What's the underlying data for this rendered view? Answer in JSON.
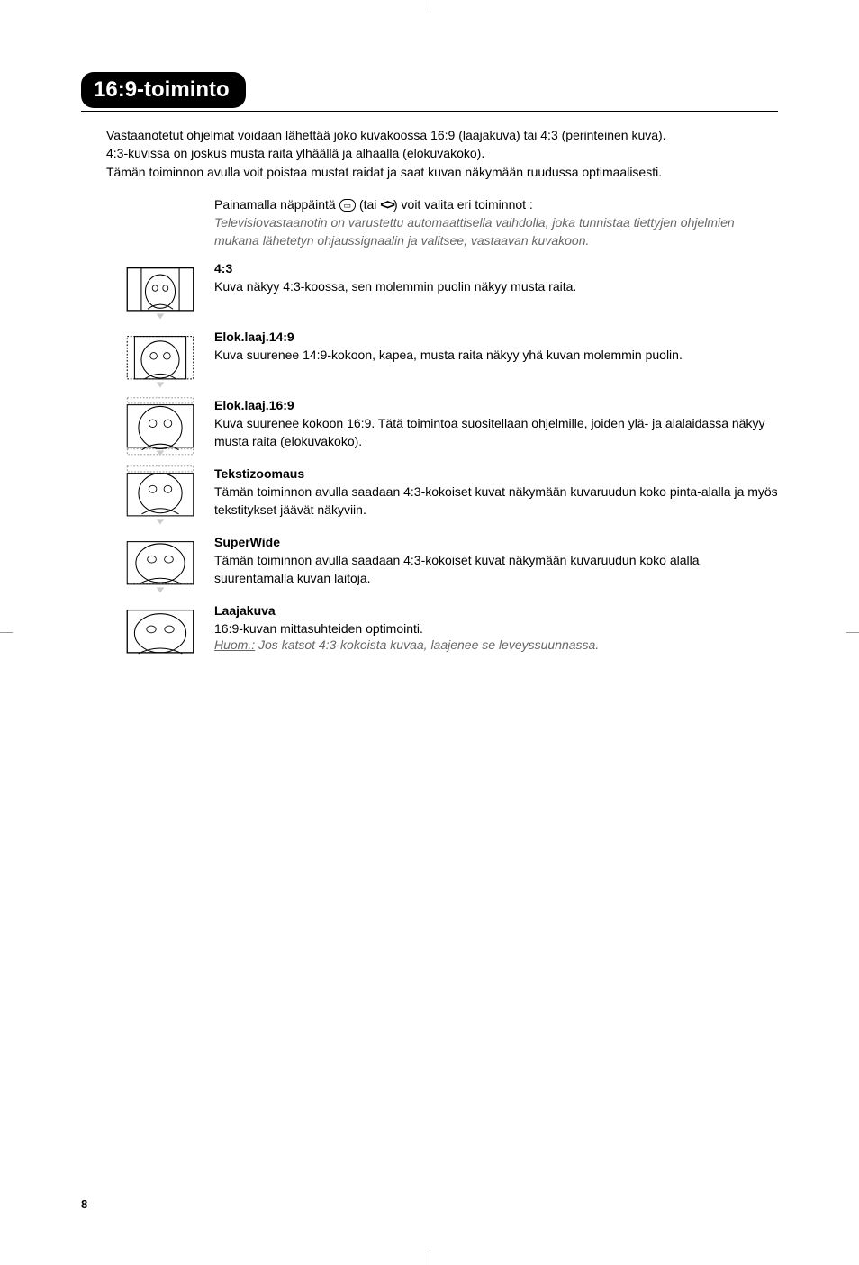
{
  "page": {
    "title": "16:9-toiminto",
    "number": "8",
    "intro_lines": [
      "Vastaanotetut ohjelmat voidaan lähettää joko kuvakoossa 16:9 (laajakuva) tai 4:3 (perinteinen kuva).",
      "4:3-kuvissa on joskus musta raita ylhäällä ja alhaalla (elokuvakoko).",
      "Tämän toiminnon avulla voit poistaa mustat raidat ja saat kuvan näkymään ruudussa optimaalisesti."
    ],
    "instruction": {
      "prefix": "Painamalla näppäintä ",
      "mid": " (tai ",
      "suffix": ") voit valita eri toiminnot :",
      "italic": "Televisiovastaanotin on varustettu automaattisella vaihdolla, joka tunnistaa tiettyjen ohjelmien mukana lähetetyn ohjaussignaalin ja valitsee, vastaavan kuvakoon."
    },
    "formats": [
      {
        "title": "4:3",
        "desc": "Kuva näkyy 4:3-koossa, sen molemmin puolin näkyy musta raita.",
        "icon_type": "4_3"
      },
      {
        "title": "Elok.laaj.14:9",
        "desc": "Kuva suurenee 14:9-kokoon, kapea, musta raita näkyy yhä kuvan molemmin puolin.",
        "icon_type": "14_9"
      },
      {
        "title": "Elok.laaj.16:9",
        "desc": "Kuva suurenee kokoon 16:9. Tätä toimintoa suositellaan ohjelmille, joiden ylä- ja alalaidassa näkyy musta raita (elokuvakoko).",
        "icon_type": "16_9"
      },
      {
        "title": "Tekstizoomaus",
        "desc": "Tämän toiminnon avulla saadaan 4:3-kokoiset kuvat näkymään kuvaruudun koko pinta-alalla ja myös tekstitykset jäävät näkyviin.",
        "icon_type": "subtitle"
      },
      {
        "title": "SuperWide",
        "desc": "Tämän toiminnon avulla saadaan 4:3-kokoiset kuvat näkymään kuvaruudun koko alalla suurentamalla kuvan laitoja.",
        "icon_type": "superwide"
      },
      {
        "title": "Laajakuva",
        "desc": "16:9-kuvan mittasuhteiden optimointi.",
        "note_prefix": "Huom.:",
        "note": " Jos katsot 4:3-kokoista kuvaa, laajenee se leveyssuunnassa.",
        "icon_type": "widescreen"
      }
    ]
  },
  "style": {
    "icon_stroke": "#000000",
    "icon_fill": "#ffffff",
    "dotted_color": "#888888",
    "header_bg": "#000000",
    "header_fg": "#ffffff",
    "italic_color": "#666666"
  }
}
